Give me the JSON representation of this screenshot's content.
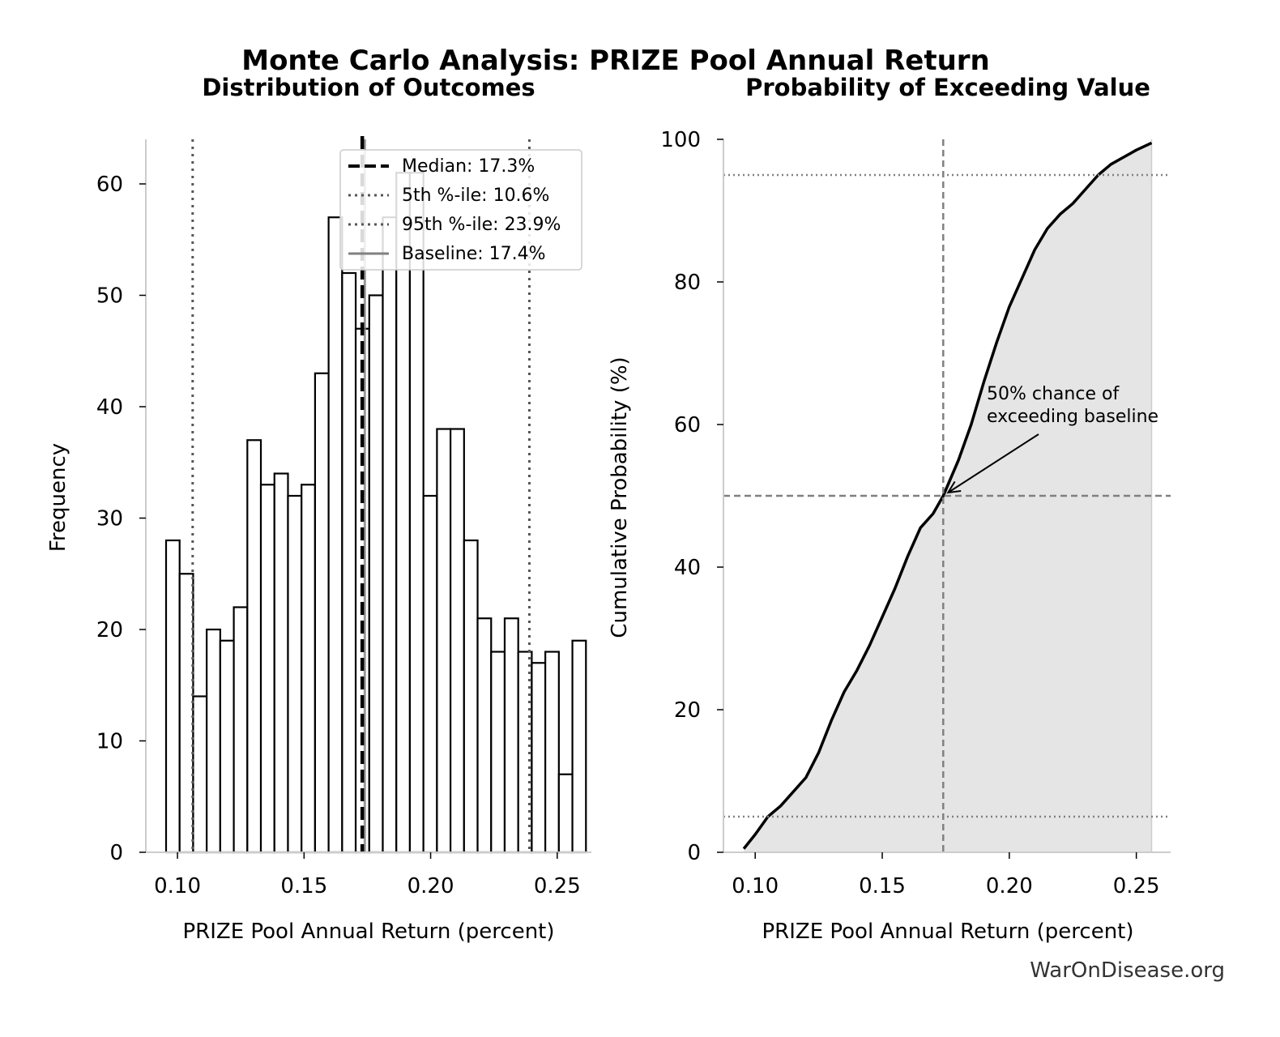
{
  "title": "Monte Carlo Analysis: PRIZE Pool Annual Return",
  "credit": "WarOnDisease.org",
  "colors": {
    "ink": "#000000",
    "ref": "#555555",
    "guide": "#808080",
    "fill": "#e5e5e5",
    "spine": "#cccccc"
  },
  "chart_data": [
    {
      "type": "bar",
      "title": "Distribution of Outcomes",
      "xlabel": "PRIZE Pool Annual Return (percent)",
      "ylabel": "Frequency",
      "xlim": [
        0.0875,
        0.2635
      ],
      "ylim": [
        0,
        64
      ],
      "xticks": [
        0.1,
        0.15,
        0.2,
        0.25
      ],
      "xtick_labels": [
        "0.10",
        "0.15",
        "0.20",
        "0.25"
      ],
      "yticks": [
        0,
        10,
        20,
        30,
        40,
        50,
        60
      ],
      "yticks_labels": [
        "0",
        "10",
        "20",
        "30",
        "40",
        "50",
        "60"
      ],
      "bin_start": 0.0955,
      "bin_width": 0.00535,
      "values": [
        28,
        25,
        14,
        20,
        19,
        22,
        37,
        33,
        34,
        32,
        33,
        43,
        57,
        52,
        47,
        50,
        57,
        61,
        61,
        32,
        38,
        38,
        28,
        21,
        18,
        21,
        18,
        17,
        18,
        7,
        19
      ],
      "median": 0.173,
      "p5": 0.106,
      "p95": 0.239,
      "baseline": 0.174,
      "legend": {
        "placement": "top-right",
        "entries": [
          "Median: 17.3%",
          "5th %-ile: 10.6%",
          "95th %-ile: 23.9%",
          "Baseline: 17.4%"
        ]
      },
      "grid": false
    },
    {
      "type": "area",
      "title": "Probability of Exceeding Value",
      "xlabel": "PRIZE Pool Annual Return (percent)",
      "ylabel": "Cumulative Probability (%)",
      "xlim": [
        0.0875,
        0.2635
      ],
      "ylim": [
        0,
        100
      ],
      "xticks": [
        0.1,
        0.15,
        0.2,
        0.25
      ],
      "xtick_labels": [
        "0.10",
        "0.15",
        "0.20",
        "0.25"
      ],
      "yticks": [
        0,
        20,
        40,
        60,
        80,
        100
      ],
      "ytick_labels": [
        "0",
        "20",
        "40",
        "60",
        "80",
        "100"
      ],
      "x": [
        0.0955,
        0.1,
        0.105,
        0.11,
        0.115,
        0.12,
        0.125,
        0.13,
        0.135,
        0.14,
        0.145,
        0.15,
        0.155,
        0.16,
        0.165,
        0.17,
        0.174,
        0.18,
        0.185,
        0.19,
        0.195,
        0.2,
        0.205,
        0.21,
        0.215,
        0.22,
        0.225,
        0.23,
        0.235,
        0.24,
        0.245,
        0.25,
        0.256
      ],
      "y": [
        0.5,
        2.5,
        5.0,
        6.5,
        8.5,
        10.5,
        14.0,
        18.5,
        22.5,
        25.5,
        29.0,
        33.0,
        37.0,
        41.5,
        45.5,
        47.5,
        50.0,
        55.0,
        60.0,
        66.0,
        71.5,
        76.5,
        80.5,
        84.5,
        87.5,
        89.5,
        91.0,
        93.0,
        95.0,
        96.5,
        97.5,
        98.5,
        99.5
      ],
      "ref_lines": {
        "x": 0.174,
        "y": 50,
        "p5_y": 5,
        "p95_y": 95
      },
      "annotation": {
        "text_lines": [
          "50% chance of",
          "exceeding baseline"
        ],
        "point": [
          0.174,
          50
        ]
      },
      "grid": false
    }
  ]
}
